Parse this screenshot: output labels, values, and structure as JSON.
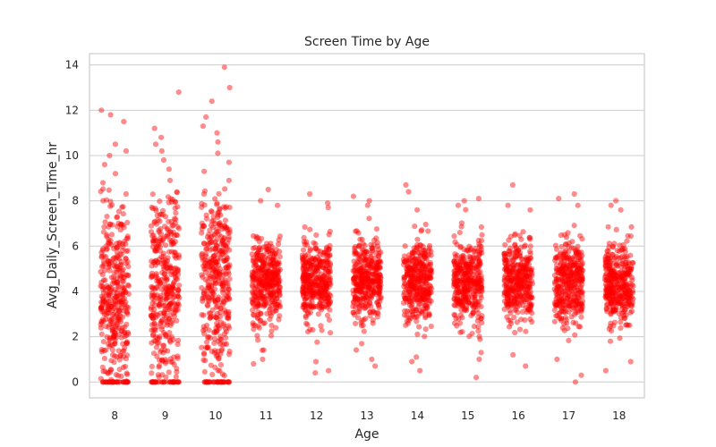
{
  "chart_data": {
    "type": "scatter",
    "title": "Screen Time by Age",
    "xlabel": "Age",
    "ylabel": "Avg_Daily_Screen_Time_hr",
    "categories": [
      "8",
      "9",
      "10",
      "11",
      "12",
      "13",
      "14",
      "15",
      "16",
      "17",
      "18"
    ],
    "ylim": [
      -0.7,
      14.5
    ],
    "yticks": [
      "0",
      "2",
      "4",
      "6",
      "8",
      "10",
      "12",
      "14"
    ],
    "grid": "y",
    "point_color": "#ff0000",
    "series": [
      {
        "category": "8",
        "center": 3.9,
        "spread": 2.7,
        "zeros": 38,
        "outliers": [
          8.8,
          9.2,
          9.6,
          10.0,
          10.2,
          10.5,
          11.5,
          11.8,
          12.0
        ]
      },
      {
        "category": "9",
        "center": 4.1,
        "spread": 2.7,
        "zeros": 38,
        "outliers": [
          8.9,
          9.4,
          9.8,
          10.2,
          10.5,
          10.8,
          11.2,
          12.8
        ]
      },
      {
        "category": "10",
        "center": 4.2,
        "spread": 2.7,
        "zeros": 38,
        "outliers": [
          8.9,
          9.3,
          9.7,
          10.1,
          10.6,
          11.0,
          11.3,
          11.7,
          12.4,
          13.0,
          13.9
        ]
      },
      {
        "category": "11",
        "center": 4.4,
        "spread": 1.2,
        "zeros": 0,
        "outliers": [
          0.8,
          1.0,
          1.4,
          7.8,
          8.0,
          8.5
        ]
      },
      {
        "category": "12",
        "center": 4.4,
        "spread": 1.2,
        "zeros": 0,
        "outliers": [
          0.4,
          0.5,
          0.9,
          7.7,
          7.9,
          8.3
        ]
      },
      {
        "category": "13",
        "center": 4.4,
        "spread": 1.2,
        "zeros": 0,
        "outliers": [
          0.7,
          1.0,
          7.8,
          8.0,
          8.2
        ]
      },
      {
        "category": "14",
        "center": 4.4,
        "spread": 1.2,
        "zeros": 0,
        "outliers": [
          0.5,
          0.9,
          1.1,
          7.6,
          8.4,
          8.7
        ]
      },
      {
        "category": "15",
        "center": 4.4,
        "spread": 1.2,
        "zeros": 0,
        "outliers": [
          0.2,
          1.0,
          1.3,
          7.8,
          8.0,
          8.1
        ]
      },
      {
        "category": "16",
        "center": 4.4,
        "spread": 1.2,
        "zeros": 0,
        "outliers": [
          0.7,
          1.2,
          7.6,
          7.8,
          8.7
        ]
      },
      {
        "category": "17",
        "center": 4.4,
        "spread": 1.2,
        "zeros": 0,
        "outliers": [
          0.0,
          0.3,
          1.0,
          7.8,
          8.1,
          8.3
        ]
      },
      {
        "category": "18",
        "center": 4.4,
        "spread": 1.2,
        "zeros": 0,
        "outliers": [
          0.5,
          0.9,
          1.8,
          7.6,
          7.8,
          8.0
        ]
      }
    ]
  }
}
